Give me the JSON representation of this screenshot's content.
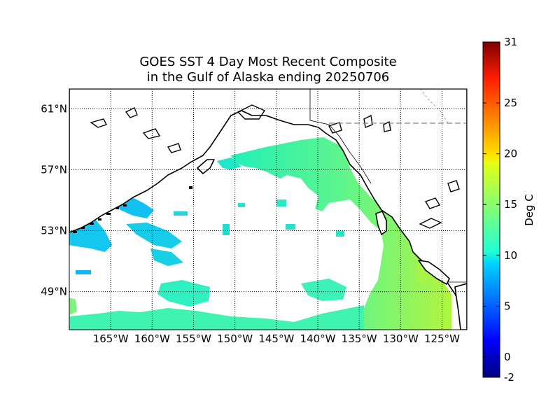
{
  "title": {
    "line1": "GOES SST 4 Day Most Recent Composite",
    "line2": "in the Gulf of Alaska ending 20250706"
  },
  "map": {
    "projection": "cylindrical",
    "lon_range": [
      -170,
      -122
    ],
    "lat_range": [
      46.5,
      62.3
    ],
    "grid": "on (dotted)",
    "lat_labels": [
      "61°N",
      "57°N",
      "53°N",
      "49°N"
    ],
    "lat_values": [
      61,
      57,
      53,
      49
    ],
    "lon_labels": [
      "165°W",
      "160°W",
      "155°W",
      "150°W",
      "145°W",
      "140°W",
      "135°W",
      "130°W",
      "125°W"
    ],
    "lon_values": [
      -165,
      -160,
      -155,
      -150,
      -145,
      -140,
      -135,
      -130,
      -125
    ],
    "land_color": "#ffffff",
    "coastline_color": "#000000"
  },
  "colorbar": {
    "label": "Deg C",
    "vmin": -2,
    "vmax": 31,
    "colormap": "jet",
    "tick_labels": [
      "-2",
      "0",
      "5",
      "10",
      "15",
      "20",
      "25",
      "31"
    ],
    "tick_values": [
      -2,
      0,
      5,
      10,
      15,
      20,
      25,
      31
    ]
  }
}
